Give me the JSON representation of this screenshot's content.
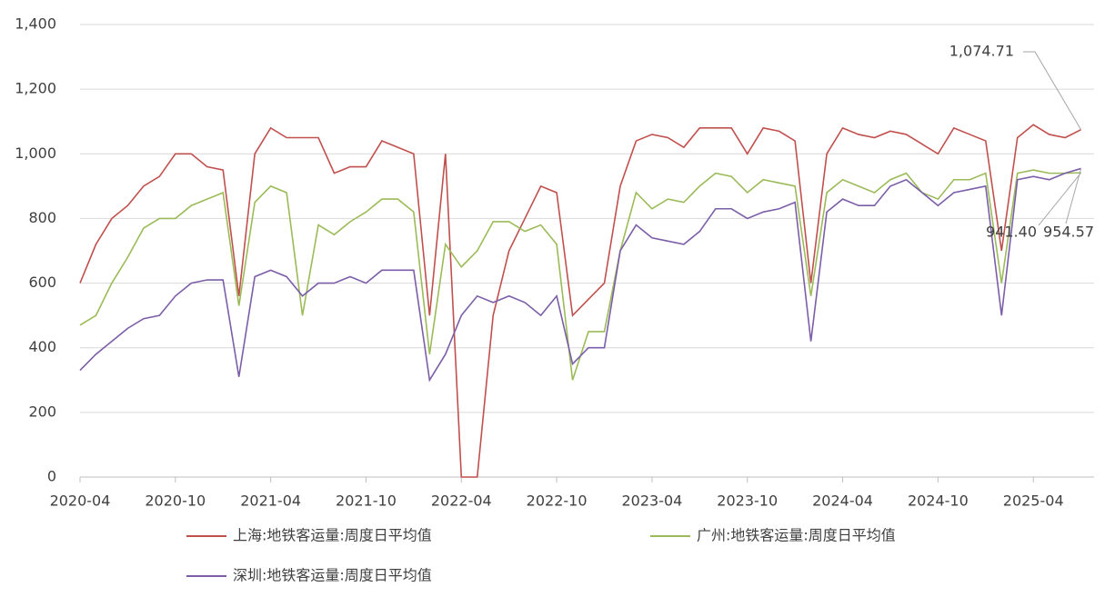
{
  "chart_data": {
    "type": "line",
    "x": [
      "2020-04",
      "2020-05",
      "2020-06",
      "2020-07",
      "2020-08",
      "2020-09",
      "2020-10",
      "2020-11",
      "2020-12",
      "2021-01",
      "2021-02",
      "2021-03",
      "2021-04",
      "2021-05",
      "2021-06",
      "2021-07",
      "2021-08",
      "2021-09",
      "2021-10",
      "2021-11",
      "2021-12",
      "2022-01",
      "2022-02",
      "2022-03",
      "2022-04",
      "2022-05",
      "2022-06",
      "2022-07",
      "2022-08",
      "2022-09",
      "2022-10",
      "2022-11",
      "2022-12",
      "2023-01",
      "2023-02",
      "2023-03",
      "2023-04",
      "2023-05",
      "2023-06",
      "2023-07",
      "2023-08",
      "2023-09",
      "2023-10",
      "2023-11",
      "2023-12",
      "2024-01",
      "2024-02",
      "2024-03",
      "2024-04",
      "2024-05",
      "2024-06",
      "2024-07",
      "2024-08",
      "2024-09",
      "2024-10",
      "2024-11",
      "2024-12",
      "2025-01",
      "2025-02",
      "2025-03",
      "2025-04",
      "2025-05",
      "2025-06",
      "2025-07"
    ],
    "series": [
      {
        "name": "上海:地铁客运量:周度日平均值",
        "color": "#c0504d",
        "end_label": "1,074.71",
        "values": [
          600,
          720,
          800,
          840,
          900,
          930,
          1000,
          1000,
          960,
          950,
          560,
          1000,
          1080,
          1050,
          1050,
          1050,
          940,
          960,
          960,
          1040,
          1020,
          1000,
          500,
          1000,
          0,
          0,
          500,
          700,
          800,
          900,
          880,
          500,
          550,
          600,
          900,
          1040,
          1060,
          1050,
          1020,
          1080,
          1080,
          1080,
          1000,
          1080,
          1070,
          1040,
          600,
          1000,
          1080,
          1060,
          1050,
          1070,
          1060,
          1030,
          1000,
          1080,
          1060,
          1040,
          700,
          1050,
          1090,
          1060,
          1050,
          1074.71
        ]
      },
      {
        "name": "广州:地铁客运量:周度日平均值",
        "color": "#9bbb59",
        "end_label": "941.40",
        "values": [
          470,
          500,
          600,
          680,
          770,
          800,
          800,
          840,
          860,
          880,
          530,
          850,
          900,
          880,
          500,
          780,
          750,
          790,
          820,
          860,
          860,
          820,
          380,
          720,
          650,
          700,
          790,
          790,
          760,
          780,
          720,
          300,
          450,
          450,
          700,
          880,
          830,
          860,
          850,
          900,
          940,
          930,
          880,
          920,
          910,
          900,
          560,
          880,
          920,
          900,
          880,
          920,
          940,
          880,
          860,
          920,
          920,
          940,
          600,
          940,
          950,
          940,
          940,
          941.4
        ]
      },
      {
        "name": "深圳:地铁客运量:周度日平均值",
        "color": "#7b5ea7",
        "end_label": "954.57",
        "values": [
          330,
          380,
          420,
          460,
          490,
          500,
          560,
          600,
          610,
          610,
          310,
          620,
          640,
          620,
          560,
          600,
          600,
          620,
          600,
          640,
          640,
          640,
          300,
          380,
          500,
          560,
          540,
          560,
          540,
          500,
          560,
          350,
          400,
          400,
          700,
          780,
          740,
          730,
          720,
          760,
          830,
          830,
          800,
          820,
          830,
          850,
          420,
          820,
          860,
          840,
          840,
          900,
          920,
          880,
          840,
          880,
          890,
          900,
          500,
          920,
          930,
          920,
          940,
          954.57
        ]
      }
    ],
    "ylim": [
      0,
      1400
    ],
    "yticks": [
      0,
      200,
      400,
      600,
      800,
      {
        "value": 1000,
        "label": "1,000"
      },
      {
        "value": 1200,
        "label": "1,200"
      },
      {
        "value": 1400,
        "label": "1,400"
      }
    ],
    "grid": true
  }
}
